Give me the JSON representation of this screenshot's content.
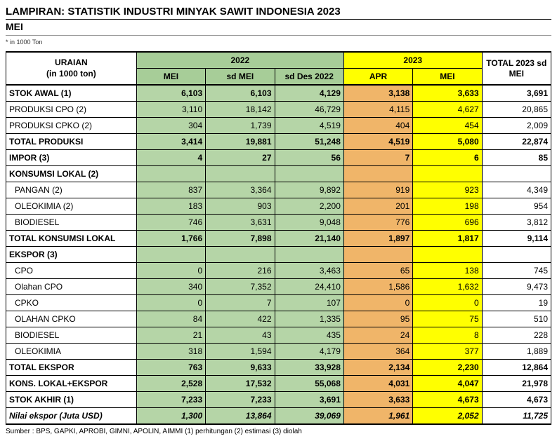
{
  "title": "LAMPIRAN: STATISTIK INDUSTRI MINYAK SAWIT INDONESIA 2023",
  "subtitle": "MEI",
  "note": "* in 1000 Ton",
  "source": "Sumber : BPS, GAPKI, APROBI, GIMNI, APOLIN, AIMMI (1) perhitungan (2) estimasi (3) diolah",
  "headers": {
    "uraian_line1": "URAIAN",
    "uraian_line2": "(in 1000 ton)",
    "y2022": "2022",
    "y2023": "2023",
    "total": "TOTAL 2023 sd MEI",
    "mei": "MEI",
    "sdmei": "sd MEI",
    "sddes": "sd  Des 2022",
    "apr": "APR",
    "mei2": "MEI"
  },
  "rows": [
    {
      "label": "STOK AWAL (1)",
      "indent": 0,
      "bold": true,
      "cells": [
        "6,103",
        "6,103",
        "4,129",
        "3,138",
        "3,633",
        "3,691"
      ],
      "boldCols": [
        4,
        5
      ]
    },
    {
      "label": "PRODUKSI CPO (2)",
      "indent": 0,
      "bold": false,
      "cells": [
        "3,110",
        "18,142",
        "46,729",
        "4,115",
        "4,627",
        "20,865"
      ]
    },
    {
      "label": "PRODUKSI CPKO (2)",
      "indent": 0,
      "bold": false,
      "cells": [
        "304",
        "1,739",
        "4,519",
        "404",
        "454",
        "2,009"
      ]
    },
    {
      "label": "TOTAL PRODUKSI",
      "indent": 0,
      "bold": true,
      "cells": [
        "3,414",
        "19,881",
        "51,248",
        "4,519",
        "5,080",
        "22,874"
      ],
      "boldCols": [
        4,
        5
      ]
    },
    {
      "label": "IMPOR (3)",
      "indent": 0,
      "bold": true,
      "cells": [
        "4",
        "27",
        "56",
        "7",
        "6",
        "85"
      ]
    },
    {
      "label": "KONSUMSI LOKAL (2)",
      "indent": 0,
      "bold": true,
      "cells": [
        "",
        "",
        "",
        "",
        "",
        ""
      ]
    },
    {
      "label": "PANGAN (2)",
      "indent": 1,
      "bold": false,
      "cells": [
        "837",
        "3,364",
        "9,892",
        "919",
        "923",
        "4,349"
      ]
    },
    {
      "label": "OLEOKIMIA (2)",
      "indent": 1,
      "bold": false,
      "cells": [
        "183",
        "903",
        "2,200",
        "201",
        "198",
        "954"
      ]
    },
    {
      "label": "BIODIESEL",
      "indent": 1,
      "bold": false,
      "cells": [
        "746",
        "3,631",
        "9,048",
        "776",
        "696",
        "3,812"
      ]
    },
    {
      "label": "TOTAL KONSUMSI LOKAL",
      "indent": 0,
      "bold": true,
      "cells": [
        "1,766",
        "7,898",
        "21,140",
        "1,897",
        "1,817",
        "9,114"
      ],
      "boldCols": [
        4,
        5
      ]
    },
    {
      "label": "EKSPOR (3)",
      "indent": 0,
      "bold": true,
      "cells": [
        "",
        "",
        "",
        "",
        "",
        ""
      ]
    },
    {
      "label": "CPO",
      "indent": 1,
      "bold": false,
      "cells": [
        "0",
        "216",
        "3,463",
        "65",
        "138",
        "745"
      ]
    },
    {
      "label": "Olahan CPO",
      "indent": 1,
      "bold": false,
      "cells": [
        "340",
        "7,352",
        "24,410",
        "1,586",
        "1,632",
        "9,473"
      ]
    },
    {
      "label": "CPKO",
      "indent": 1,
      "bold": false,
      "cells": [
        "0",
        "7",
        "107",
        "0",
        "0",
        "19"
      ]
    },
    {
      "label": "OLAHAN CPKO",
      "indent": 1,
      "bold": false,
      "cells": [
        "84",
        "422",
        "1,335",
        "95",
        "75",
        "510"
      ]
    },
    {
      "label": "BIODIESEL",
      "indent": 1,
      "bold": false,
      "cells": [
        "21",
        "43",
        "435",
        "24",
        "8",
        "228"
      ]
    },
    {
      "label": "OLEOKIMIA",
      "indent": 1,
      "bold": false,
      "cells": [
        "318",
        "1,594",
        "4,179",
        "364",
        "377",
        "1,889"
      ]
    },
    {
      "label": "TOTAL EKSPOR",
      "indent": 0,
      "bold": true,
      "cells": [
        "763",
        "9,633",
        "33,928",
        "2,134",
        "2,230",
        "12,864"
      ],
      "boldCols": [
        4,
        5
      ]
    },
    {
      "label": "KONS. LOKAL+EKSPOR",
      "indent": 0,
      "bold": true,
      "cells": [
        "2,528",
        "17,532",
        "55,068",
        "4,031",
        "4,047",
        "21,978"
      ],
      "boldCols": [
        4,
        5
      ]
    },
    {
      "label": "STOK AKHIR (1)",
      "indent": 0,
      "bold": true,
      "cells": [
        "7,233",
        "7,233",
        "3,691",
        "3,633",
        "4,673",
        "4,673"
      ],
      "boldCols": [
        4,
        5
      ]
    },
    {
      "label": "Nilai ekspor (Juta USD)",
      "indent": 0,
      "bold": true,
      "italic": true,
      "cells": [
        "1,300",
        "13,864",
        "39,069",
        "1,961",
        "2,052",
        "11,725"
      ],
      "boldCols": [
        4,
        5
      ],
      "thickBottom": true
    }
  ],
  "columnBg": [
    "green",
    "green",
    "green",
    "orange",
    "yellow",
    "white"
  ],
  "colors": {
    "green": "#b5d5a7",
    "green_dark": "#a7cd98",
    "yellow": "#ffff00",
    "orange": "#f0b569",
    "white": "#ffffff"
  }
}
